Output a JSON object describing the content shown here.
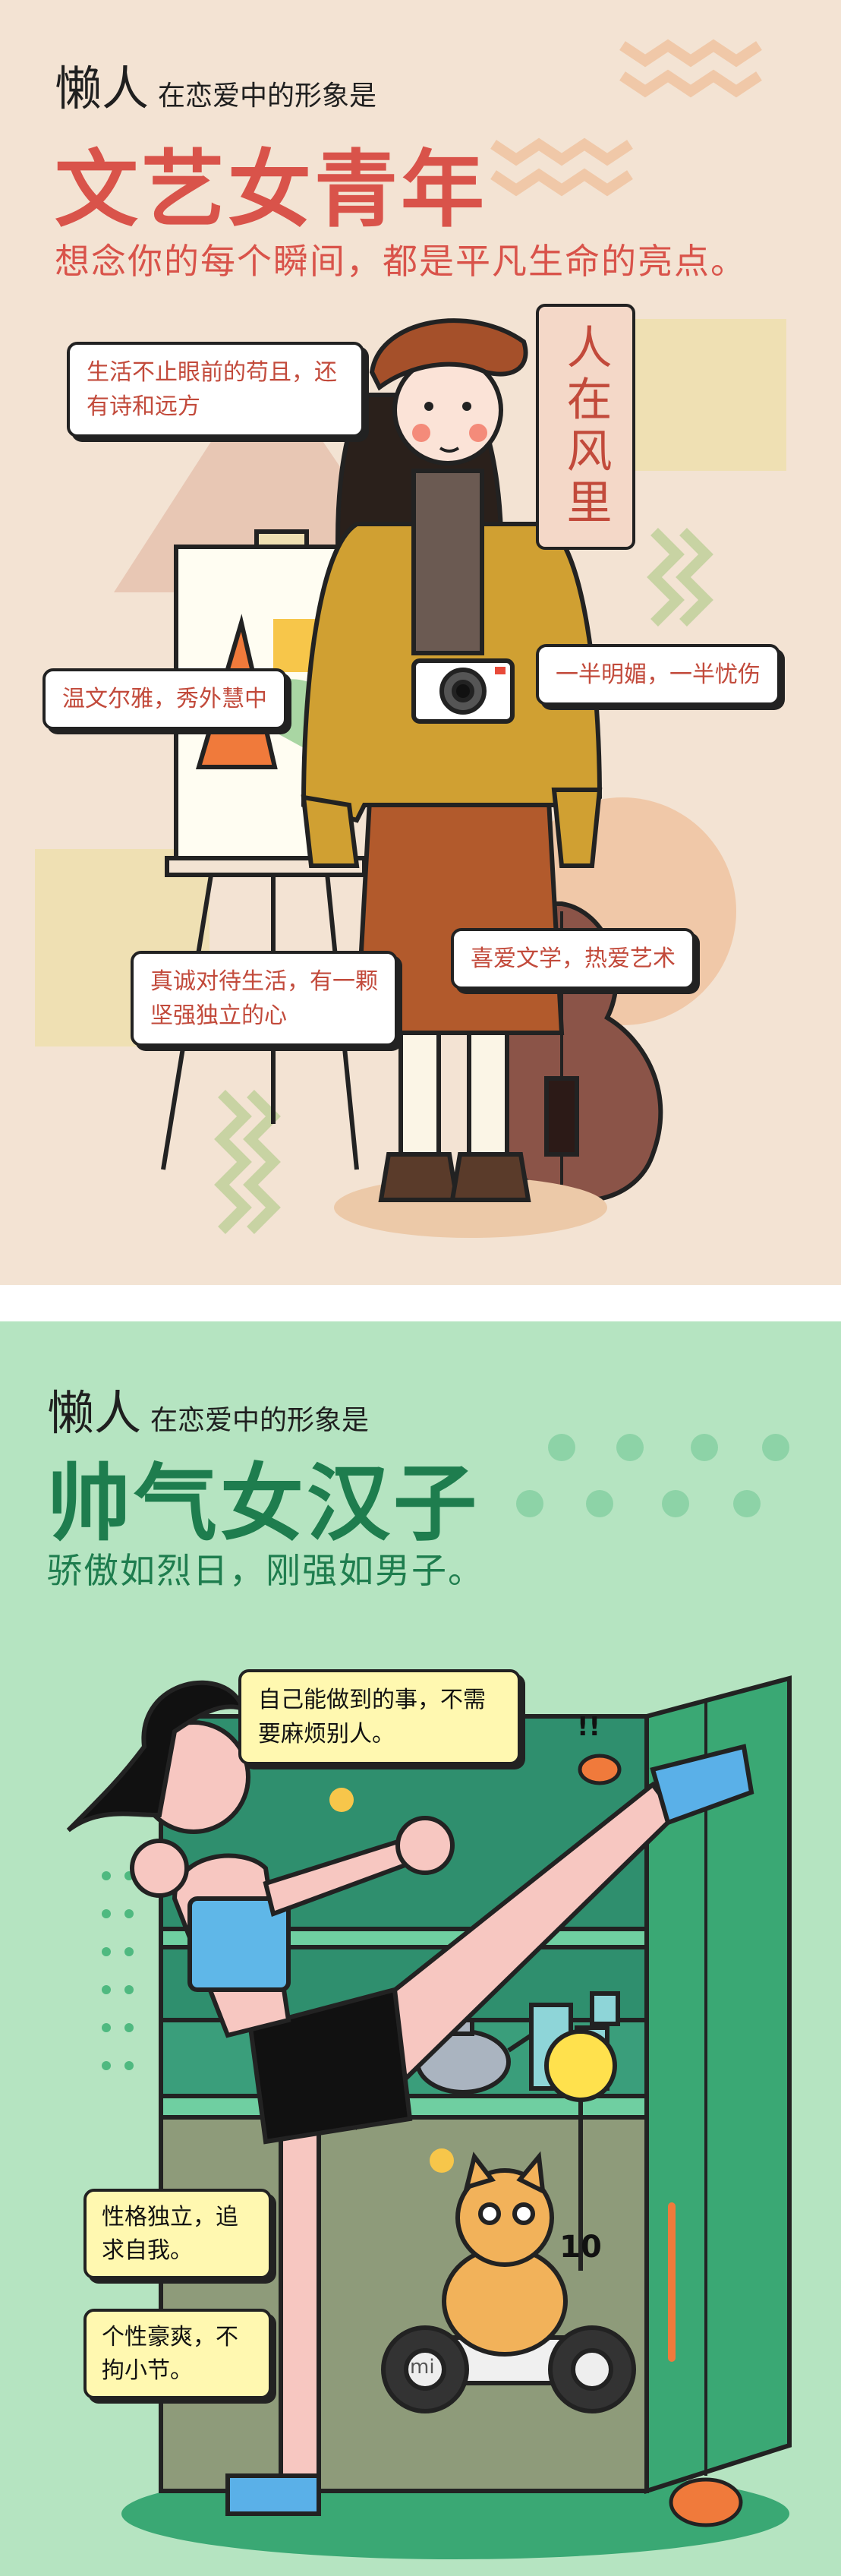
{
  "colors": {
    "panel1_bg": "#f3e3d3",
    "panel1_accent": "#d9534a",
    "panel2_bg": "#b5e4c1",
    "panel2_accent": "#1e7d4e"
  },
  "panel1": {
    "kicker_big": "懒人",
    "kicker_small": "在恋爱中的形象是",
    "headline": "文艺女青年",
    "tagline": "想念你的每个瞬间，都是平凡生命的亮点。",
    "vertical_sign": "人在风里",
    "bubbles": [
      "生活不止眼前的苟且，还有诗和远方",
      "温文尔雅，秀外慧中",
      "一半明媚，一半忧伤",
      "真诚对待生活，有一颗坚强独立的心",
      "喜爱文学，热爱艺术"
    ]
  },
  "panel2": {
    "kicker_big": "懒人",
    "kicker_small": "在恋爱中的形象是",
    "headline": "帅气女汉子",
    "tagline": "骄傲如烈日，刚强如男子。",
    "speech": "自己能做到的事，不需要麻烦别人。",
    "sign_number": "10",
    "exclaim": "!!",
    "scooter_brand": "mi",
    "notes": [
      "性格独立，追求自我。",
      "个性豪爽，不拘小节。"
    ]
  }
}
